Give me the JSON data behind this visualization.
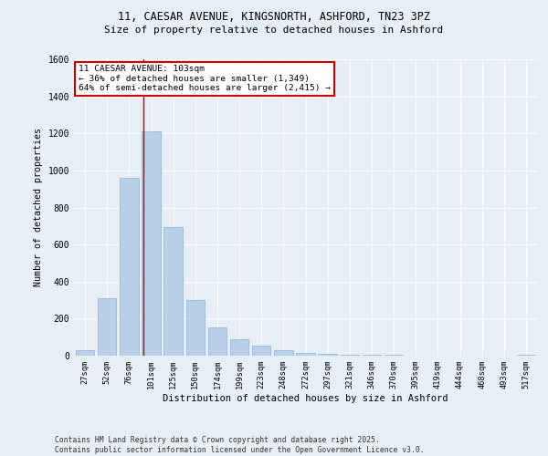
{
  "title1": "11, CAESAR AVENUE, KINGSNORTH, ASHFORD, TN23 3PZ",
  "title2": "Size of property relative to detached houses in Ashford",
  "xlabel": "Distribution of detached houses by size in Ashford",
  "ylabel": "Number of detached properties",
  "categories": [
    "27sqm",
    "52sqm",
    "76sqm",
    "101sqm",
    "125sqm",
    "150sqm",
    "174sqm",
    "199sqm",
    "223sqm",
    "248sqm",
    "272sqm",
    "297sqm",
    "321sqm",
    "346sqm",
    "370sqm",
    "395sqm",
    "419sqm",
    "444sqm",
    "468sqm",
    "493sqm",
    "517sqm"
  ],
  "values": [
    30,
    310,
    960,
    1210,
    695,
    300,
    155,
    90,
    55,
    30,
    15,
    8,
    5,
    4,
    3,
    2,
    2,
    1,
    1,
    1,
    5
  ],
  "bar_color": "#b8d0e8",
  "bar_edge_color": "#8aafe0",
  "background_color": "#e8eef5",
  "grid_color": "#ffffff",
  "red_line_index": 3,
  "annotation_title": "11 CAESAR AVENUE: 103sqm",
  "annotation_line1": "← 36% of detached houses are smaller (1,349)",
  "annotation_line2": "64% of semi-detached houses are larger (2,415) →",
  "annotation_box_color": "#ffffff",
  "annotation_border_color": "#cc0000",
  "red_line_color": "#cc0000",
  "ylim": [
    0,
    1600
  ],
  "yticks": [
    0,
    200,
    400,
    600,
    800,
    1000,
    1200,
    1400,
    1600
  ],
  "footer1": "Contains HM Land Registry data © Crown copyright and database right 2025.",
  "footer2": "Contains public sector information licensed under the Open Government Licence v3.0."
}
